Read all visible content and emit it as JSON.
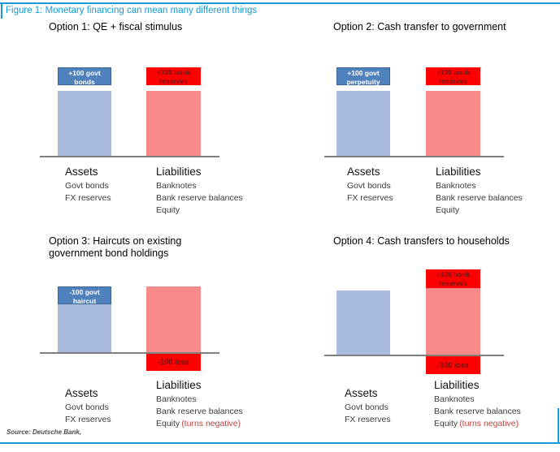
{
  "figure_title": "Figure 1: Monetary financing can mean many different things",
  "source": "Source: Deutsche Bank,",
  "colors": {
    "accent": "#149ad6",
    "bar_blue": "#a9bcdd",
    "bar_blue_box": "#4f81bd",
    "bar_red": "#f98a8a",
    "bar_red_box": "#fe0000",
    "axis": "#7f7f7f",
    "negative": "#c2423a"
  },
  "chart_data": [
    {
      "type": "bar",
      "title_lines": [
        "Option 1: QE + fiscal stimulus",
        ""
      ],
      "categories": [
        "Assets",
        "Liabilities"
      ],
      "bars": {
        "assets": {
          "box_line1": "+100 govt",
          "box_line2": "bonds",
          "change_value": 100
        },
        "liabilities": {
          "box_line1": "+100 bank",
          "box_line2": "reserves",
          "change_value": 100,
          "loss_label": "",
          "loss_value": 0
        }
      },
      "labels": {
        "assets_header": "Assets",
        "assets_items": [
          "Govt bonds",
          "FX reserves"
        ],
        "liabilities_header": "Liabilities",
        "liabilities_items": [
          "Banknotes",
          "Bank reserve balances"
        ],
        "equity_label": "Equity",
        "equity_note": ""
      }
    },
    {
      "type": "bar",
      "title_lines": [
        "Option 2: Cash transfer to government",
        ""
      ],
      "categories": [
        "Assets",
        "Liabilities"
      ],
      "bars": {
        "assets": {
          "box_line1": "+100 govt",
          "box_line2": "perpetuity",
          "change_value": 100
        },
        "liabilities": {
          "box_line1": "+100 bank",
          "box_line2": "reserves",
          "change_value": 100,
          "loss_label": "",
          "loss_value": 0
        }
      },
      "labels": {
        "assets_header": "Assets",
        "assets_items": [
          "Govt bonds",
          "FX reserves"
        ],
        "liabilities_header": "Liabilities",
        "liabilities_items": [
          "Banknotes",
          "Bank reserve balances"
        ],
        "equity_label": "Equity",
        "equity_note": ""
      }
    },
    {
      "type": "bar",
      "title_lines": [
        "Option 3: Haircuts on existing",
        "government bond holdings"
      ],
      "categories": [
        "Assets",
        "Liabilities"
      ],
      "bars": {
        "assets": {
          "box_line1": "-100 govt",
          "box_line2": "haircut",
          "change_value": -100
        },
        "liabilities": {
          "loss_label": "-100 loss",
          "loss_value": -100
        }
      },
      "labels": {
        "assets_header": "Assets",
        "assets_items": [
          "Govt bonds",
          "FX reserves"
        ],
        "liabilities_header": "Liabilities",
        "liabilities_items": [
          "Banknotes",
          "Bank reserve balances"
        ],
        "equity_label": "Equity",
        "equity_note": "(turns negative)"
      }
    },
    {
      "type": "bar",
      "title_lines": [
        "Option 4: Cash transfers to households",
        ""
      ],
      "categories": [
        "Assets",
        "Liabilities"
      ],
      "bars": {
        "assets": {},
        "liabilities": {
          "box_line1": "+100 bank",
          "box_line2": "reserves",
          "change_value": 100,
          "loss_label": "-100 loss",
          "loss_value": -100
        }
      },
      "labels": {
        "assets_header": "Assets",
        "assets_items": [
          "Govt bonds",
          "FX reserves"
        ],
        "liabilities_header": "Liabilities",
        "liabilities_items": [
          "Banknotes",
          "Bank reserve balances"
        ],
        "equity_label": "Equity",
        "equity_note": "(turns negative)"
      }
    }
  ]
}
